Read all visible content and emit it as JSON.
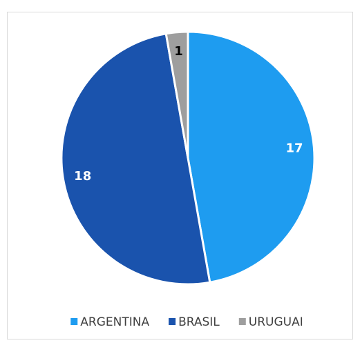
{
  "chart_data": {
    "type": "pie",
    "categories": [
      "ARGENTINA",
      "BRASIL",
      "URUGUAI"
    ],
    "values": [
      17,
      18,
      1
    ],
    "colors": [
      "#1e9cf0",
      "#1a53ad",
      "#9e9e9e"
    ],
    "legend": "bottom"
  }
}
